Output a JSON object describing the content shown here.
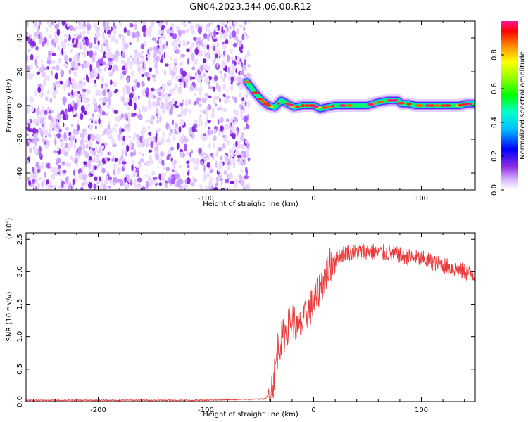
{
  "figure": {
    "title": "GN04.2023.344.06.08.R12"
  },
  "chart_data": [
    {
      "type": "heatmap",
      "xlabel": "Height of straight line (km)",
      "ylabel": "Frequency (Hz)",
      "xlim": [
        -267,
        150
      ],
      "ylim": [
        -50,
        50
      ],
      "xticks": [
        -200,
        -100,
        0,
        100
      ],
      "yticks": [
        -40,
        -20,
        0,
        20,
        40
      ],
      "noise_region_x": [
        -267,
        -60
      ],
      "signal_track": {
        "x": [
          -62,
          -55,
          -48,
          -42,
          -36,
          -30,
          -24,
          -18,
          -10,
          -4,
          0,
          6,
          12,
          20,
          30,
          40,
          50,
          60,
          70,
          78,
          82,
          88,
          95,
          105,
          115,
          125,
          135,
          142,
          150
        ],
        "y": [
          14,
          8,
          3,
          0,
          -1,
          3,
          1,
          -1,
          0,
          0,
          0,
          -2,
          -1,
          0,
          0,
          0,
          0,
          2,
          3,
          3,
          1,
          1,
          0,
          0,
          0,
          0,
          0,
          1,
          1
        ]
      },
      "colorbar": {
        "label": "Normalized spectral amplitude",
        "range": [
          0,
          1
        ],
        "ticks": [
          0.0,
          0.2,
          0.4,
          0.6,
          0.8
        ]
      }
    },
    {
      "type": "line",
      "xlabel": "Height of straight line (km)",
      "ylabel": "SNR (10 * v/v)",
      "y_multiplier": "(x10⁴)",
      "xlim": [
        -267,
        150
      ],
      "ylim": [
        0,
        2.6
      ],
      "xticks": [
        -200,
        -100,
        0,
        100
      ],
      "yticks": [
        0.0,
        0.5,
        1.0,
        1.5,
        2.0,
        2.5
      ],
      "color": "#e83a3a",
      "series": [
        {
          "x": [
            -267,
            -100,
            -45,
            -40,
            -37,
            -35,
            -33,
            -30,
            -25,
            -20,
            -15,
            -10,
            -5,
            0,
            5,
            10,
            15,
            20,
            25,
            30,
            40,
            50,
            60,
            70,
            80,
            90,
            100,
            110,
            120,
            130,
            140,
            150
          ],
          "y": [
            0.02,
            0.02,
            0.04,
            0.15,
            0.35,
            0.6,
            0.85,
            0.95,
            1.1,
            1.3,
            1.1,
            1.2,
            1.4,
            1.5,
            1.7,
            1.9,
            2.1,
            2.2,
            2.25,
            2.3,
            2.3,
            2.32,
            2.3,
            2.28,
            2.25,
            2.22,
            2.2,
            2.15,
            2.1,
            2.05,
            2.0,
            1.95
          ]
        }
      ]
    }
  ]
}
